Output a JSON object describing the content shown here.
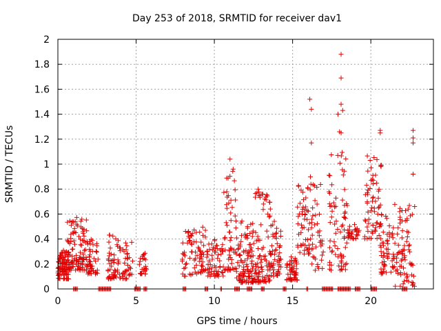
{
  "chart_data": {
    "type": "scatter",
    "title": "Day 253 of 2018, SRMTID for receiver dav1",
    "xlabel": "GPS time / hours",
    "ylabel": "SRMTID / TECUs",
    "xlim": [
      0,
      24
    ],
    "ylim": [
      0,
      2
    ],
    "x_ticks": [
      0,
      5,
      10,
      15,
      20
    ],
    "x_tick_labels": [
      "0",
      "5",
      "10",
      "15",
      "20"
    ],
    "y_ticks": [
      0,
      0.2,
      0.4,
      0.6,
      0.8,
      1,
      1.2,
      1.4,
      1.6,
      1.8,
      2
    ],
    "y_tick_labels": [
      "0",
      "0.2",
      "0.4",
      "0.6",
      "0.8",
      "1",
      "1.2",
      "1.4",
      "1.6",
      "1.8",
      "2"
    ],
    "grid": true,
    "marker": "+",
    "color": "#e00000",
    "clusters": [
      {
        "x0": 0.0,
        "x1": 0.7,
        "lo": 0.08,
        "hi": 0.32,
        "n": 90
      },
      {
        "x0": 0.6,
        "x1": 1.05,
        "lo": 0.15,
        "hi": 0.56,
        "n": 40
      },
      {
        "x0": 1.05,
        "x1": 1.9,
        "lo": 0.15,
        "hi": 0.58,
        "n": 70
      },
      {
        "x0": 1.9,
        "x1": 2.6,
        "lo": 0.12,
        "hi": 0.4,
        "n": 45
      },
      {
        "x0": 3.2,
        "x1": 4.0,
        "lo": 0.08,
        "hi": 0.46,
        "n": 55
      },
      {
        "x0": 4.1,
        "x1": 4.8,
        "lo": 0.08,
        "hi": 0.38,
        "n": 35
      },
      {
        "x0": 5.2,
        "x1": 5.7,
        "lo": 0.12,
        "hi": 0.3,
        "n": 25
      },
      {
        "x0": 7.9,
        "x1": 8.6,
        "lo": 0.1,
        "hi": 0.56,
        "n": 35
      },
      {
        "x0": 8.7,
        "x1": 9.6,
        "lo": 0.12,
        "hi": 0.5,
        "n": 45
      },
      {
        "x0": 9.5,
        "x1": 10.6,
        "lo": 0.1,
        "hi": 0.4,
        "n": 60
      },
      {
        "x0": 10.6,
        "x1": 11.4,
        "lo": 0.15,
        "hi": 0.95,
        "n": 55
      },
      {
        "x0": 11.4,
        "x1": 12.6,
        "lo": 0.05,
        "hi": 0.55,
        "n": 110
      },
      {
        "x0": 12.6,
        "x1": 13.6,
        "lo": 0.05,
        "hi": 0.78,
        "n": 90
      },
      {
        "x0": 13.6,
        "x1": 14.3,
        "lo": 0.1,
        "hi": 0.6,
        "n": 50
      },
      {
        "x0": 14.6,
        "x1": 15.3,
        "lo": 0.07,
        "hi": 0.26,
        "n": 50
      },
      {
        "x0": 15.3,
        "x1": 16.2,
        "lo": 0.28,
        "hi": 0.9,
        "n": 55
      },
      {
        "x0": 16.2,
        "x1": 17.0,
        "lo": 0.15,
        "hi": 1.05,
        "n": 40
      },
      {
        "x0": 17.3,
        "x1": 18.5,
        "lo": 0.15,
        "hi": 1.1,
        "n": 75
      },
      {
        "x0": 18.5,
        "x1": 19.3,
        "lo": 0.4,
        "hi": 0.52,
        "n": 30
      },
      {
        "x0": 19.6,
        "x1": 20.7,
        "lo": 0.4,
        "hi": 1.08,
        "n": 70
      },
      {
        "x0": 20.6,
        "x1": 21.5,
        "lo": 0.12,
        "hi": 0.6,
        "n": 55
      },
      {
        "x0": 21.5,
        "x1": 22.8,
        "lo": 0.02,
        "hi": 0.68,
        "n": 75
      }
    ],
    "peaks": [
      {
        "x": 11.0,
        "y": 1.04
      },
      {
        "x": 11.2,
        "y": 0.96
      },
      {
        "x": 12.8,
        "y": 0.8
      },
      {
        "x": 16.1,
        "y": 1.52
      },
      {
        "x": 16.2,
        "y": 1.44
      },
      {
        "x": 16.2,
        "y": 1.17
      },
      {
        "x": 17.9,
        "y": 1.4
      },
      {
        "x": 18.0,
        "y": 1.26
      },
      {
        "x": 18.1,
        "y": 1.88
      },
      {
        "x": 18.1,
        "y": 1.69
      },
      {
        "x": 18.1,
        "y": 1.48
      },
      {
        "x": 18.2,
        "y": 1.43
      },
      {
        "x": 18.1,
        "y": 1.25
      },
      {
        "x": 20.6,
        "y": 1.27
      },
      {
        "x": 20.6,
        "y": 1.25
      },
      {
        "x": 22.7,
        "y": 1.27
      },
      {
        "x": 22.7,
        "y": 1.21
      },
      {
        "x": 22.7,
        "y": 1.17
      },
      {
        "x": 22.7,
        "y": 0.92
      },
      {
        "x": 22.8,
        "y": 0.66
      }
    ],
    "zero_segments": [
      [
        1.0,
        1.25
      ],
      [
        2.6,
        3.4
      ],
      [
        4.9,
        5.3
      ],
      [
        5.5,
        5.7
      ],
      [
        8.0,
        8.2
      ],
      [
        9.4,
        9.6
      ],
      [
        10.4,
        10.5
      ],
      [
        11.3,
        11.6
      ],
      [
        12.1,
        12.4
      ],
      [
        13.0,
        13.2
      ],
      [
        14.4,
        14.6
      ],
      [
        15.9,
        16.0
      ],
      [
        16.9,
        17.6
      ],
      [
        17.9,
        18.7
      ],
      [
        19.0,
        19.3
      ],
      [
        20.0,
        20.4
      ],
      [
        22.0,
        22.3
      ]
    ]
  }
}
